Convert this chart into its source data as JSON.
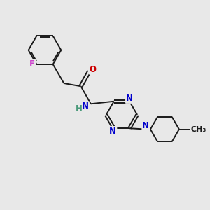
{
  "background_color": "#e8e8e8",
  "bond_color": "#1a1a1a",
  "N_color": "#0000cc",
  "O_color": "#cc0000",
  "F_color": "#cc44cc",
  "NH_color": "#4a9a7a",
  "font_size": 8.5,
  "bond_width": 1.4,
  "figsize": [
    3.0,
    3.0
  ],
  "dpi": 100,
  "xlim": [
    0,
    10
  ],
  "ylim": [
    0,
    10
  ]
}
